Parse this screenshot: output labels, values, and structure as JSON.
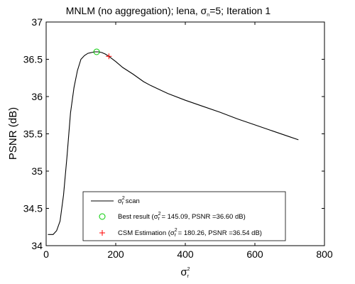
{
  "chart_data": {
    "type": "line",
    "title": {
      "prefix": "MNLM (no aggregation); lena, ",
      "sigma": "σ",
      "sub": "n",
      "suffix": "=5; Iteration 1"
    },
    "xlabel": {
      "sigma": "σ",
      "sub": "r",
      "sup": "2"
    },
    "ylabel": "PSNR (dB)",
    "xlim": [
      0,
      800
    ],
    "ylim": [
      34,
      37
    ],
    "xticks": [
      0,
      200,
      400,
      600,
      800
    ],
    "yticks": [
      34,
      34.5,
      35,
      35.5,
      36,
      36.5,
      37
    ],
    "xtick_labels": [
      "0",
      "200",
      "400",
      "600",
      "800"
    ],
    "ytick_labels": [
      "34",
      "34.5",
      "35",
      "35.5",
      "36",
      "36.5",
      "37"
    ],
    "grid": false,
    "legend_position": "bottom-center",
    "series": [
      {
        "color": "#000000",
        "x": [
          5,
          10,
          20,
          30,
          40,
          50,
          60,
          70,
          80,
          90,
          100,
          110,
          120,
          130,
          140,
          145.09,
          150,
          160,
          170,
          180.26,
          200,
          220,
          250,
          280,
          300,
          350,
          400,
          450,
          500,
          550,
          600,
          650,
          700,
          725
        ],
        "y": [
          34.15,
          34.15,
          34.15,
          34.2,
          34.33,
          34.68,
          35.2,
          35.78,
          36.12,
          36.35,
          36.5,
          36.55,
          36.58,
          36.59,
          36.6,
          36.6,
          36.6,
          36.59,
          36.57,
          36.54,
          36.47,
          36.39,
          36.3,
          36.2,
          36.15,
          36.04,
          35.95,
          35.87,
          35.79,
          35.7,
          35.62,
          35.54,
          35.46,
          35.42
        ]
      }
    ],
    "markers": [
      {
        "type": "circle",
        "color": "#00cc00",
        "x": 145.09,
        "y": 36.6
      },
      {
        "type": "plus",
        "color": "#ff0000",
        "x": 180.26,
        "y": 36.54
      }
    ],
    "legend": [
      {
        "kind": "line",
        "color": "#000000",
        "sigma": "σ",
        "sub": "r",
        "sup": "2",
        "after": " scan"
      },
      {
        "kind": "circle",
        "color": "#00cc00",
        "before": "Best result (",
        "sigma": "σ",
        "sub": "r",
        "sup": "2",
        "after": " = 145.09, PSNR =36.60 dB)"
      },
      {
        "kind": "plus",
        "color": "#ff0000",
        "before": "CSM Estimation (",
        "sigma": "σ",
        "sub": "r",
        "sup": "2",
        "after": " = 180.26, PSNR =36.54 dB)"
      }
    ]
  }
}
